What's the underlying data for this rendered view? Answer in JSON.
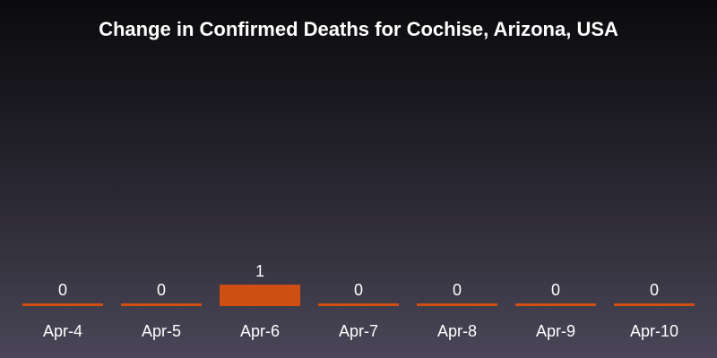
{
  "chart_data": {
    "type": "bar",
    "title": "Change in Confirmed Deaths for Cochise, Arizona, USA",
    "categories": [
      "Apr-4",
      "Apr-5",
      "Apr-6",
      "Apr-7",
      "Apr-8",
      "Apr-9",
      "Apr-10"
    ],
    "values": [
      0,
      0,
      1,
      0,
      0,
      0,
      0
    ],
    "xlabel": "",
    "ylabel": "",
    "ylim": [
      0,
      1
    ],
    "grid": false,
    "bar_color": "#cf4e12"
  }
}
